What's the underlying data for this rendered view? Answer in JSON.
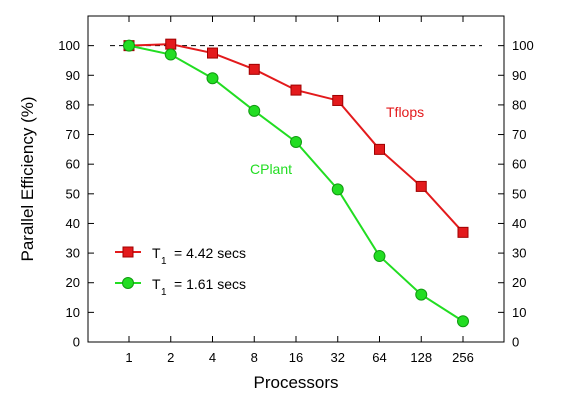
{
  "chart_data": {
    "type": "line",
    "xlabel": "Processors",
    "ylabel": "Parallel Efficiency (%)",
    "categories": [
      "1",
      "2",
      "4",
      "8",
      "16",
      "32",
      "64",
      "128",
      "256"
    ],
    "ylim": [
      0,
      110
    ],
    "yticks": [
      0,
      10,
      20,
      30,
      40,
      50,
      60,
      70,
      80,
      90,
      100
    ],
    "reference_line": {
      "y": 100,
      "style": "dashed"
    },
    "series": [
      {
        "name": "Tflops",
        "color": "#e31a1c",
        "marker": "square",
        "values": [
          100,
          100.5,
          97.5,
          92,
          85,
          81.5,
          65,
          52.5,
          37
        ]
      },
      {
        "name": "CPlant",
        "color": "#22dd22",
        "marker": "circle",
        "values": [
          100,
          97,
          89,
          78,
          67.5,
          51.5,
          29,
          16,
          7
        ]
      }
    ],
    "legend": {
      "placement": "bottom-left",
      "entries": [
        {
          "symbol": "T",
          "subscript": "1",
          "text": "= 4.42 secs",
          "series": "Tflops"
        },
        {
          "symbol": "T",
          "subscript": "1",
          "text": "= 1.61 secs",
          "series": "CPlant"
        }
      ]
    }
  }
}
